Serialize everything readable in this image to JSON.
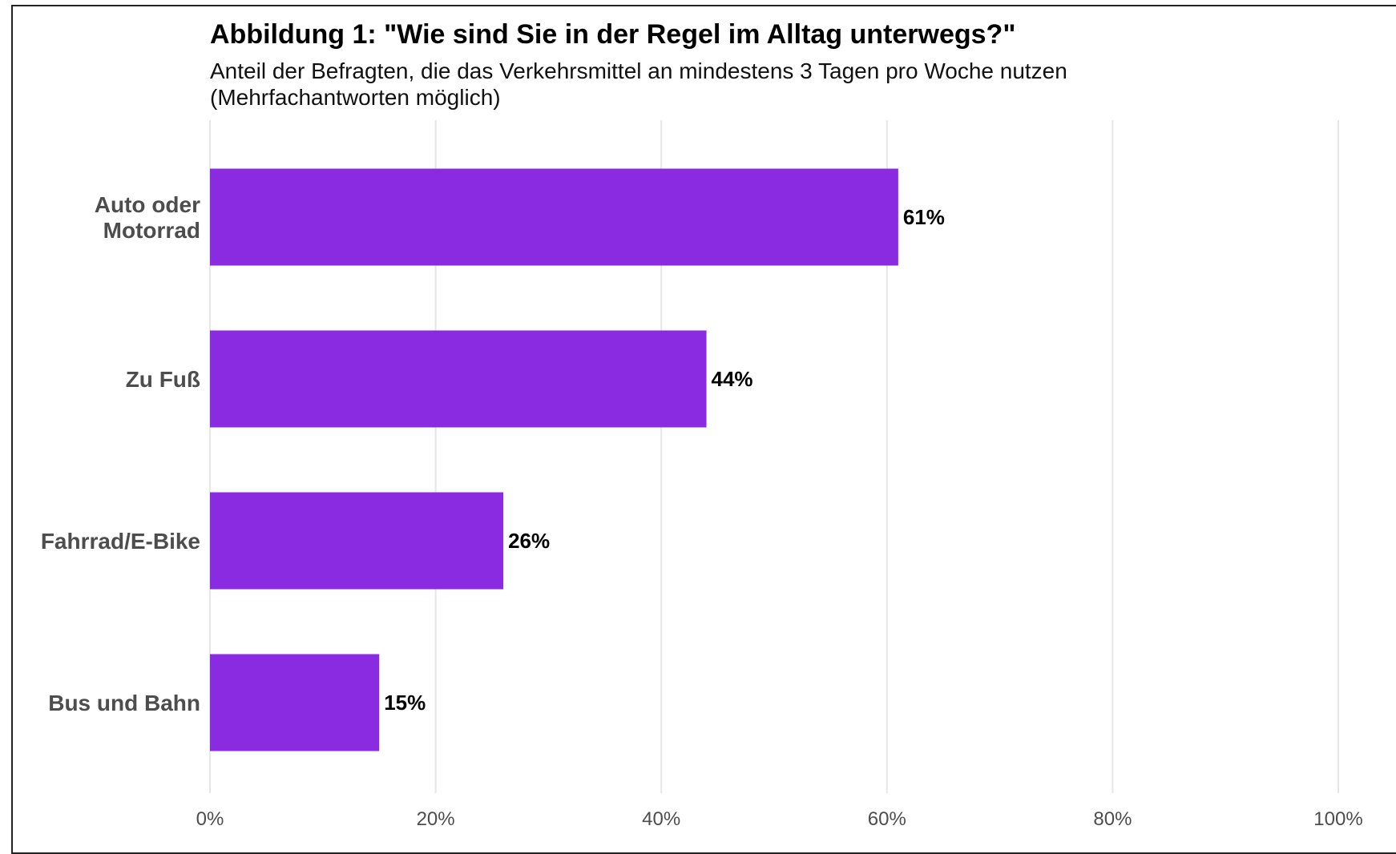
{
  "chart_data": {
    "type": "bar",
    "orientation": "horizontal",
    "title": "Abbildung 1: \"Wie sind Sie in der Regel im Alltag unterwegs?\"",
    "subtitle": "Anteil der Befragten, die das Verkehrsmittel an mindestens 3 Tagen pro Woche nutzen (Mehrfachantworten möglich)",
    "categories": [
      [
        "Auto oder",
        "Motorrad"
      ],
      [
        "Zu Fuß"
      ],
      [
        "Fahrrad/E-Bike"
      ],
      [
        "Bus und Bahn"
      ]
    ],
    "values": [
      61,
      44,
      26,
      15
    ],
    "value_labels": [
      "61%",
      "44%",
      "26%",
      "15%"
    ],
    "xlim": [
      0,
      100
    ],
    "x_ticks": [
      0,
      20,
      40,
      60,
      80,
      100
    ],
    "x_tick_labels": [
      "0%",
      "20%",
      "40%",
      "60%",
      "80%",
      "100%"
    ],
    "grid": true,
    "colors": {
      "bar": "#8A2BE2",
      "grid": "#e6e6e6"
    }
  }
}
